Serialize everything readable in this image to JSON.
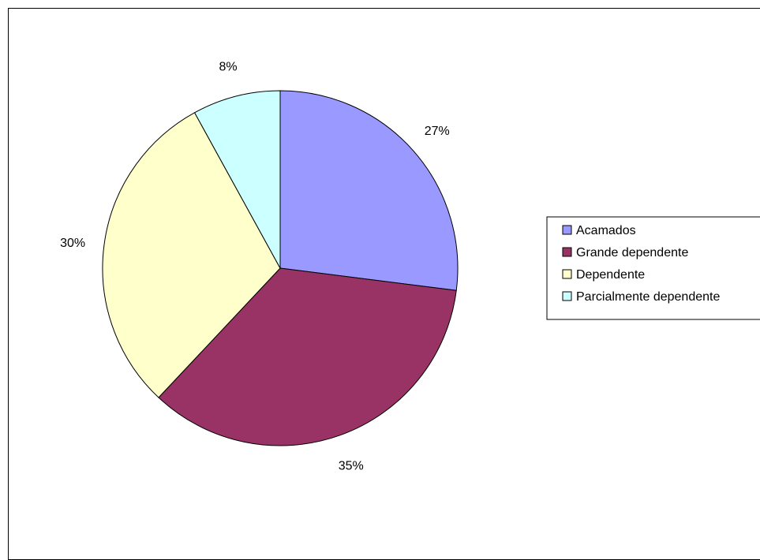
{
  "chart_data": {
    "type": "pie",
    "title": "",
    "legend_position": "right",
    "slices": [
      {
        "label": "Acamados",
        "value": 27,
        "display": "27%",
        "color": "#9999FF"
      },
      {
        "label": "Grande dependente",
        "value": 35,
        "display": "35%",
        "color": "#993366"
      },
      {
        "label": "Dependente",
        "value": 30,
        "display": "30%",
        "color": "#FFFFCC"
      },
      {
        "label": "Parcialmente dependente",
        "value": 8,
        "display": "8%",
        "color": "#CCFFFF"
      }
    ]
  }
}
